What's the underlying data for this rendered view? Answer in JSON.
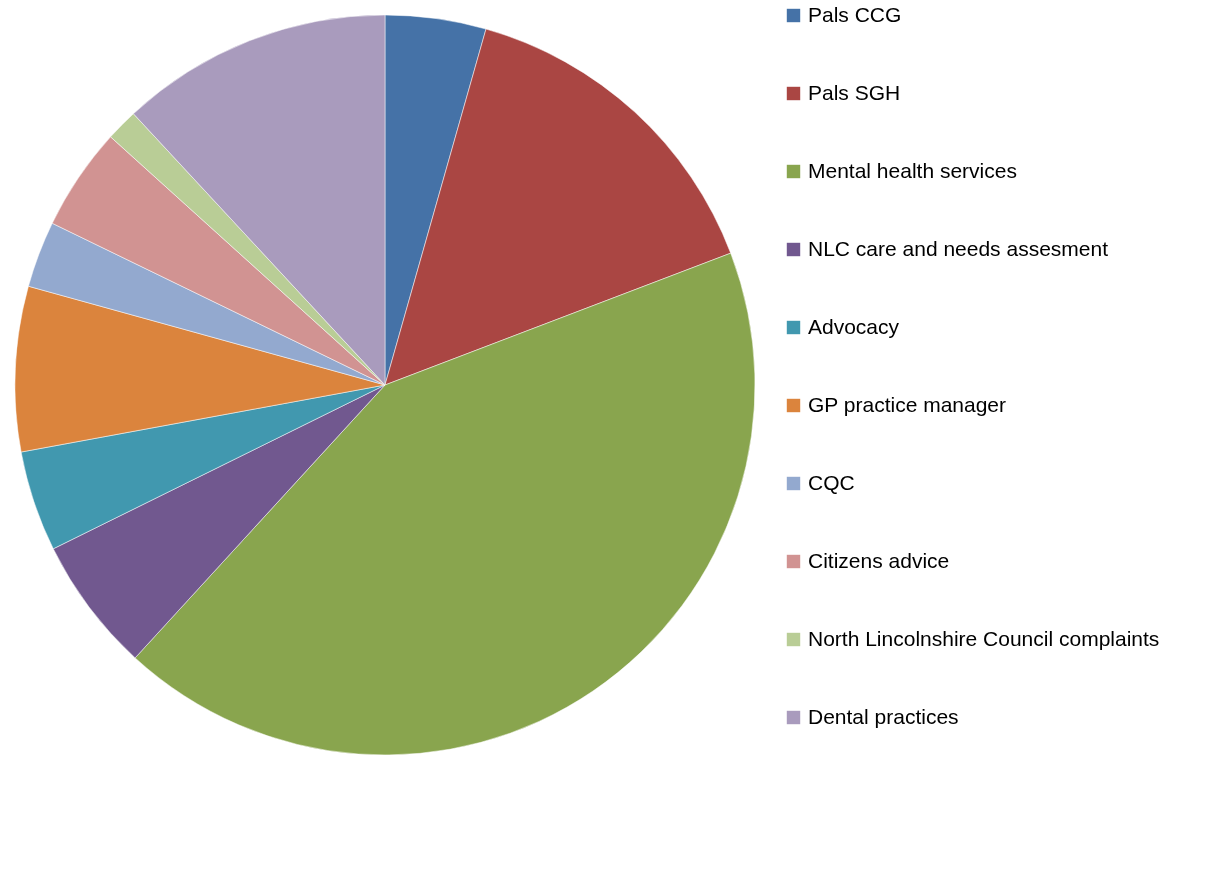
{
  "chart_data": {
    "type": "pie",
    "categories": [
      "Pals CCG",
      "Pals SGH",
      "Mental health services",
      "NLC care and needs assesment",
      "Advocacy",
      "GP practice manager",
      "CQC",
      "Citizens advice",
      "North Lincolnshire Council complaints",
      "Dental practices"
    ],
    "values": [
      4.4,
      14.8,
      42.6,
      5.9,
      4.4,
      7.2,
      2.9,
      4.5,
      1.4,
      11.9
    ],
    "colors": [
      "#4572a7",
      "#aa4643",
      "#89a54e",
      "#71588f",
      "#4198af",
      "#db843d",
      "#93a9cf",
      "#d19392",
      "#b9cd96",
      "#a99bbd"
    ],
    "legend": "right"
  }
}
